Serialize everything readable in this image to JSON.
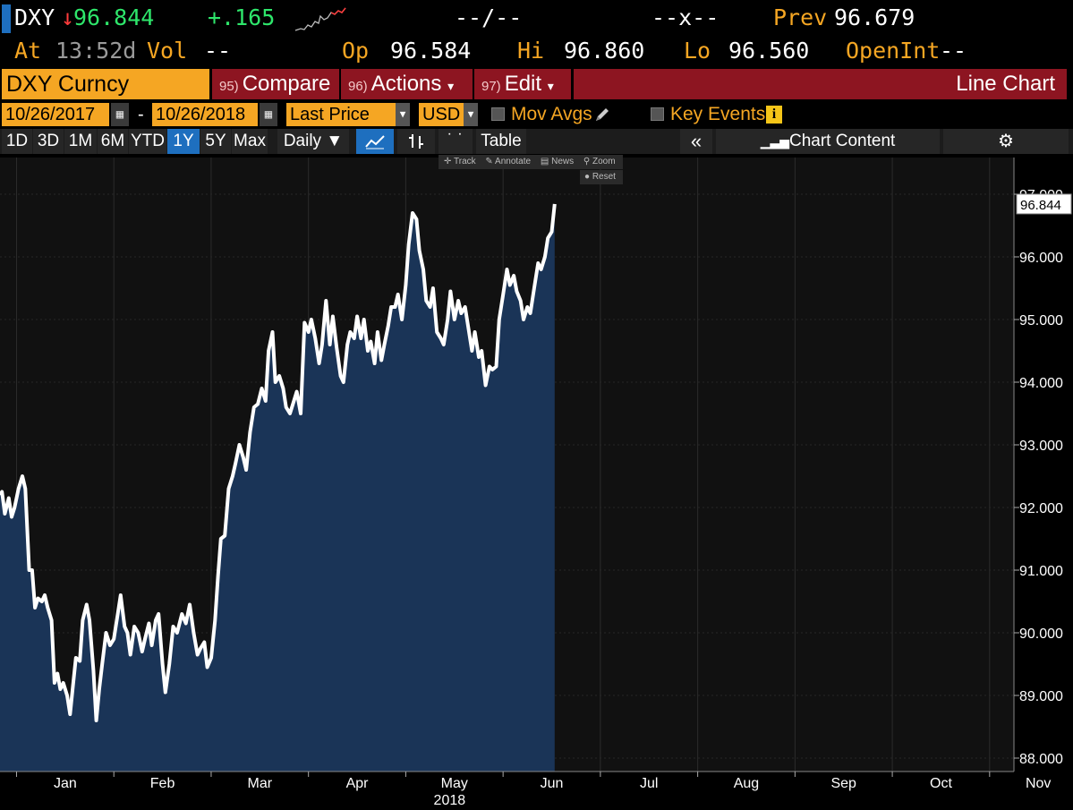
{
  "quote": {
    "ticker": "DXY",
    "direction_arrow": "↓",
    "last": "96.844",
    "change": "+.165",
    "bid_ask": "--/--",
    "size_x": "--x--",
    "prev_label": "Prev",
    "prev": "96.679",
    "at_label": "At",
    "time": "13:52d",
    "vol_label": "Vol",
    "vol": "--",
    "open_label": "Op",
    "open": "96.584",
    "hi_label": "Hi",
    "hi": "96.860",
    "lo_label": "Lo",
    "lo": "96.560",
    "openint_label": "OpenInt",
    "openint": "--"
  },
  "menu": {
    "security": "DXY Curncy",
    "compare_num": "95)",
    "compare": "Compare",
    "actions_num": "96)",
    "actions": "Actions",
    "edit_num": "97)",
    "edit": "Edit",
    "dropdown_arrow": "▾",
    "chart_type": "Line Chart"
  },
  "settings": {
    "start_date": "10/26/2017",
    "date_sep": "-",
    "end_date": "10/26/2018",
    "field": "Last Price",
    "currency": "USD",
    "mov_avgs": "Mov Avgs",
    "key_events": "Key Events",
    "info_badge": "i"
  },
  "toolbar": {
    "periods": [
      "1D",
      "3D",
      "1M",
      "6M",
      "YTD",
      "1Y",
      "5Y",
      "Max"
    ],
    "selected_period": "1Y",
    "frequency": "Daily ▼",
    "table": "Table",
    "collapse": "«",
    "chart_content": "Chart Content",
    "settings_icon": "⚙",
    "line_icon": "line-chart-icon",
    "bar_icon": "ohlc-bar-icon"
  },
  "chart_tools": {
    "track": "Track",
    "annotate": "Annotate",
    "news": "News",
    "zoom": "Zoom",
    "reset": "Reset"
  },
  "colors": {
    "accent_orange": "#f5a623",
    "menu_red": "#8d1521",
    "area_fill": "#1a3457",
    "line": "#ffffff",
    "up_green": "#2ee66b",
    "down_red": "#ff3b3b"
  },
  "chart_data": {
    "type": "area",
    "title": "DXY Curncy Last Price",
    "xlabel": "2018",
    "ylabel": "",
    "ylim": [
      88.0,
      97.0
    ],
    "y_ticks": [
      88,
      89,
      90,
      91,
      92,
      93,
      94,
      95,
      96,
      97
    ],
    "y_tick_labels": [
      "88.000",
      "89.000",
      "90.000",
      "91.000",
      "92.000",
      "93.000",
      "94.000",
      "95.000",
      "96.000",
      "97.000"
    ],
    "x_tick_labels": [
      "Jan",
      "Feb",
      "Mar",
      "Apr",
      "May",
      "Jun",
      "Jul",
      "Aug",
      "Sep",
      "Oct",
      "Nov"
    ],
    "x_tick_month_index": [
      2,
      3,
      4,
      5,
      6,
      7,
      8,
      9,
      10,
      11,
      12
    ],
    "xlim_month_index": [
      1.83,
      12.25
    ],
    "last_value_label": "96.844",
    "series": [
      {
        "name": "DXY Last Price",
        "points": [
          [
            1.83,
            92.2
          ],
          [
            1.85,
            92.25
          ],
          [
            1.88,
            91.9
          ],
          [
            1.92,
            92.15
          ],
          [
            1.95,
            91.85
          ],
          [
            1.98,
            92.0
          ],
          [
            2.02,
            92.3
          ],
          [
            2.06,
            92.5
          ],
          [
            2.09,
            92.3
          ],
          [
            2.13,
            91.0
          ],
          [
            2.16,
            91.0
          ],
          [
            2.19,
            90.4
          ],
          [
            2.22,
            90.55
          ],
          [
            2.26,
            90.5
          ],
          [
            2.29,
            90.6
          ],
          [
            2.32,
            90.4
          ],
          [
            2.36,
            90.2
          ],
          [
            2.39,
            89.2
          ],
          [
            2.42,
            89.35
          ],
          [
            2.45,
            89.1
          ],
          [
            2.48,
            89.2
          ],
          [
            2.52,
            89.0
          ],
          [
            2.55,
            88.7
          ],
          [
            2.58,
            89.15
          ],
          [
            2.61,
            89.6
          ],
          [
            2.65,
            89.55
          ],
          [
            2.68,
            90.2
          ],
          [
            2.72,
            90.45
          ],
          [
            2.75,
            90.2
          ],
          [
            2.79,
            89.4
          ],
          [
            2.82,
            88.6
          ],
          [
            2.85,
            89.1
          ],
          [
            2.88,
            89.5
          ],
          [
            2.92,
            90.0
          ],
          [
            2.96,
            89.8
          ],
          [
            3.0,
            89.9
          ],
          [
            3.04,
            90.3
          ],
          [
            3.07,
            90.6
          ],
          [
            3.11,
            90.1
          ],
          [
            3.14,
            90.0
          ],
          [
            3.17,
            89.65
          ],
          [
            3.21,
            90.1
          ],
          [
            3.25,
            90.0
          ],
          [
            3.29,
            89.7
          ],
          [
            3.32,
            89.9
          ],
          [
            3.36,
            90.15
          ],
          [
            3.39,
            89.8
          ],
          [
            3.43,
            90.2
          ],
          [
            3.46,
            90.3
          ],
          [
            3.5,
            89.5
          ],
          [
            3.53,
            89.05
          ],
          [
            3.57,
            89.5
          ],
          [
            3.61,
            90.1
          ],
          [
            3.65,
            90.0
          ],
          [
            3.7,
            90.3
          ],
          [
            3.74,
            90.15
          ],
          [
            3.78,
            90.45
          ],
          [
            3.82,
            90.0
          ],
          [
            3.86,
            89.65
          ],
          [
            3.89,
            89.75
          ],
          [
            3.93,
            89.85
          ],
          [
            3.96,
            89.45
          ],
          [
            4.0,
            89.6
          ],
          [
            4.04,
            90.2
          ],
          [
            4.07,
            90.9
          ],
          [
            4.1,
            91.5
          ],
          [
            4.14,
            91.55
          ],
          [
            4.18,
            92.3
          ],
          [
            4.22,
            92.5
          ],
          [
            4.25,
            92.7
          ],
          [
            4.29,
            93.0
          ],
          [
            4.33,
            92.8
          ],
          [
            4.36,
            92.6
          ],
          [
            4.4,
            93.2
          ],
          [
            4.44,
            93.6
          ],
          [
            4.48,
            93.65
          ],
          [
            4.52,
            93.9
          ],
          [
            4.56,
            93.7
          ],
          [
            4.59,
            94.5
          ],
          [
            4.63,
            94.8
          ],
          [
            4.66,
            94.0
          ],
          [
            4.7,
            94.1
          ],
          [
            4.74,
            93.9
          ],
          [
            4.77,
            93.6
          ],
          [
            4.81,
            93.5
          ],
          [
            4.85,
            93.7
          ],
          [
            4.88,
            93.85
          ],
          [
            4.92,
            93.5
          ],
          [
            4.96,
            94.95
          ],
          [
            5.0,
            94.8
          ],
          [
            5.03,
            95.0
          ],
          [
            5.07,
            94.7
          ],
          [
            5.11,
            94.3
          ],
          [
            5.14,
            94.6
          ],
          [
            5.18,
            95.3
          ],
          [
            5.22,
            94.6
          ],
          [
            5.25,
            95.05
          ],
          [
            5.29,
            94.55
          ],
          [
            5.33,
            94.1
          ],
          [
            5.36,
            94.0
          ],
          [
            5.4,
            94.6
          ],
          [
            5.43,
            94.8
          ],
          [
            5.47,
            94.7
          ],
          [
            5.5,
            95.05
          ],
          [
            5.54,
            94.7
          ],
          [
            5.57,
            95.0
          ],
          [
            5.61,
            94.5
          ],
          [
            5.64,
            94.65
          ],
          [
            5.68,
            94.3
          ],
          [
            5.71,
            94.8
          ],
          [
            5.75,
            94.35
          ],
          [
            5.78,
            94.6
          ],
          [
            5.82,
            94.9
          ],
          [
            5.85,
            95.2
          ],
          [
            5.89,
            95.2
          ],
          [
            5.92,
            95.4
          ],
          [
            5.96,
            95.0
          ],
          [
            6.0,
            95.55
          ],
          [
            6.03,
            96.2
          ],
          [
            6.07,
            96.7
          ],
          [
            6.11,
            96.6
          ],
          [
            6.14,
            96.1
          ],
          [
            6.18,
            95.8
          ],
          [
            6.21,
            95.3
          ],
          [
            6.25,
            95.2
          ],
          [
            6.28,
            95.5
          ],
          [
            6.32,
            94.8
          ],
          [
            6.36,
            94.7
          ],
          [
            6.39,
            94.6
          ],
          [
            6.43,
            95.0
          ],
          [
            6.46,
            95.45
          ],
          [
            6.5,
            95.0
          ],
          [
            6.54,
            95.3
          ],
          [
            6.57,
            95.1
          ],
          [
            6.61,
            95.2
          ],
          [
            6.64,
            94.9
          ],
          [
            6.68,
            94.5
          ],
          [
            6.71,
            94.8
          ],
          [
            6.75,
            94.4
          ],
          [
            6.78,
            94.5
          ],
          [
            6.82,
            93.95
          ],
          [
            6.86,
            94.25
          ],
          [
            6.89,
            94.2
          ],
          [
            6.93,
            94.25
          ],
          [
            6.96,
            95.0
          ],
          [
            7.0,
            95.4
          ],
          [
            7.04,
            95.8
          ],
          [
            7.07,
            95.55
          ],
          [
            7.11,
            95.7
          ],
          [
            7.14,
            95.45
          ],
          [
            7.18,
            95.3
          ],
          [
            7.21,
            95.0
          ],
          [
            7.25,
            95.2
          ],
          [
            7.28,
            95.1
          ],
          [
            7.32,
            95.5
          ],
          [
            7.36,
            95.9
          ],
          [
            7.39,
            95.8
          ],
          [
            7.43,
            96.0
          ],
          [
            7.46,
            96.3
          ],
          [
            7.5,
            96.4
          ],
          [
            7.53,
            96.844
          ]
        ]
      }
    ]
  }
}
